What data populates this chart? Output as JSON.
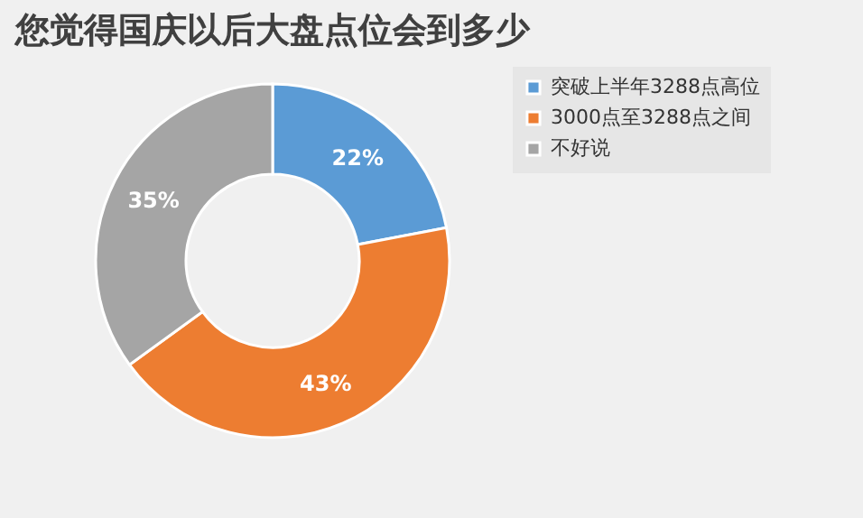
{
  "chart_data": {
    "type": "donut",
    "title": "您觉得国庆以后大盘点位会到多少",
    "categories": [
      "突破上半年3288点高位",
      "3000点至3288点之间",
      "不好说"
    ],
    "values": [
      22,
      43,
      35
    ],
    "colors": [
      "#5b9bd5",
      "#ed7d31",
      "#a5a5a5"
    ],
    "value_labels": [
      "22%",
      "43%",
      "35%"
    ],
    "legend": "right"
  }
}
